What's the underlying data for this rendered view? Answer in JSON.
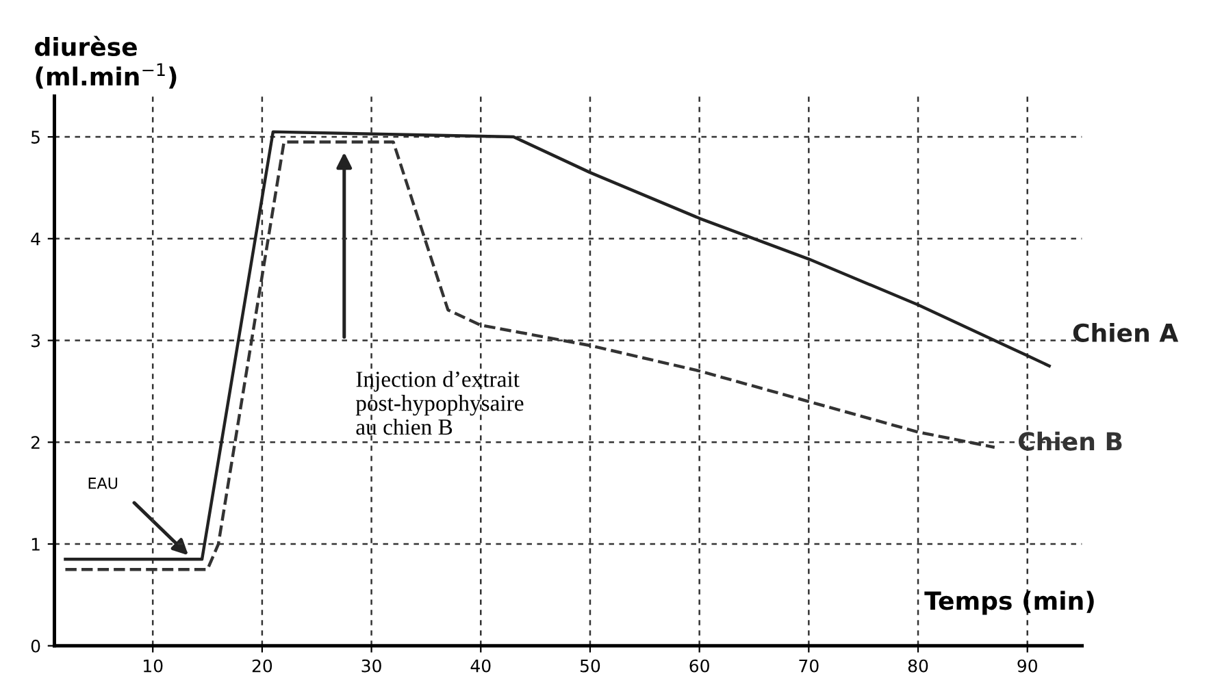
{
  "chart_data": {
    "type": "line",
    "xlabel": "Temps (min)",
    "ylabel": "diurèse\n(ml.min$^{−1}$)",
    "x": [
      2,
      14.5,
      21,
      43,
      50,
      60,
      70,
      80,
      90,
      92
    ],
    "series": [
      {
        "name": "Chien A",
        "color": "#222222",
        "line_style": "solid",
        "values": [
          0.85,
          0.85,
          5.05,
          5.0,
          4.65,
          4.2,
          3.8,
          3.35,
          2.85,
          2.75
        ]
      },
      {
        "name": "Chien B",
        "color": "#333333",
        "line_style": "dashed",
        "x": [
          2,
          15,
          16,
          22,
          32,
          37,
          40,
          50,
          60,
          70,
          80,
          87
        ],
        "values": [
          0.75,
          0.75,
          1.0,
          4.95,
          4.95,
          3.3,
          3.15,
          2.95,
          2.7,
          2.4,
          2.1,
          1.95
        ]
      }
    ],
    "annotations": [
      "EAU",
      "Injection d’extrait\npost-hypophysaire\nau chien B"
    ],
    "xlim": [
      1,
      95
    ],
    "ylim": [
      0,
      5.4
    ],
    "xticks": [
      10,
      20,
      30,
      40,
      50,
      60,
      70,
      80,
      90
    ],
    "yticks": [
      0,
      1,
      2,
      3,
      4,
      5
    ],
    "grid": true,
    "legend": false,
    "marker": "none"
  }
}
